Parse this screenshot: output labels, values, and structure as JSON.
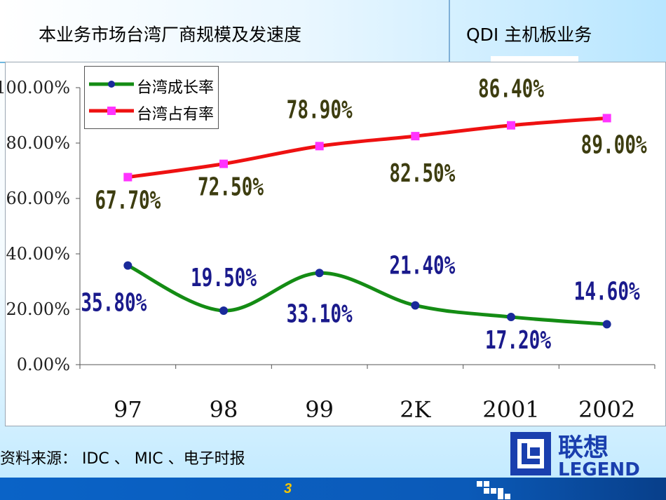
{
  "header": {
    "title": "本业务市场台湾厂商规模及发速度",
    "subtitle": "QDI 主机板业务"
  },
  "chart_data": {
    "type": "line",
    "categories": [
      "97",
      "98",
      "99",
      "2K",
      "2001",
      "2002"
    ],
    "ylim": [
      0,
      100
    ],
    "yticks": [
      "0.00%",
      "20.00%",
      "40.00%",
      "60.00%",
      "80.00%",
      "100.00%"
    ],
    "grid": false,
    "legend_position": "top-left",
    "series": [
      {
        "name": "台湾成长率",
        "color": "#148c14",
        "marker_color": "#1a2a9a",
        "values": [
          35.8,
          19.5,
          33.1,
          21.4,
          17.2,
          14.6
        ],
        "labels": [
          "35.80%",
          "19.50%",
          "33.10%",
          "21.40%",
          "17.20%",
          "14.60%"
        ],
        "label_color": "#1a1a8c"
      },
      {
        "name": "台湾占有率",
        "color": "#ee1111",
        "marker_color": "#ff33ff",
        "values": [
          67.7,
          72.5,
          78.9,
          82.5,
          86.4,
          89.0
        ],
        "labels": [
          "67.70%",
          "72.50%",
          "78.90%",
          "82.50%",
          "86.40%",
          "89.00%"
        ],
        "label_color": "#3d3d10"
      }
    ]
  },
  "footer": {
    "source": "资料来源： IDC 、 MIC 、电子时报",
    "page_number": "3",
    "logo_text_cn": "联想",
    "logo_text_en": "LEGEND"
  }
}
